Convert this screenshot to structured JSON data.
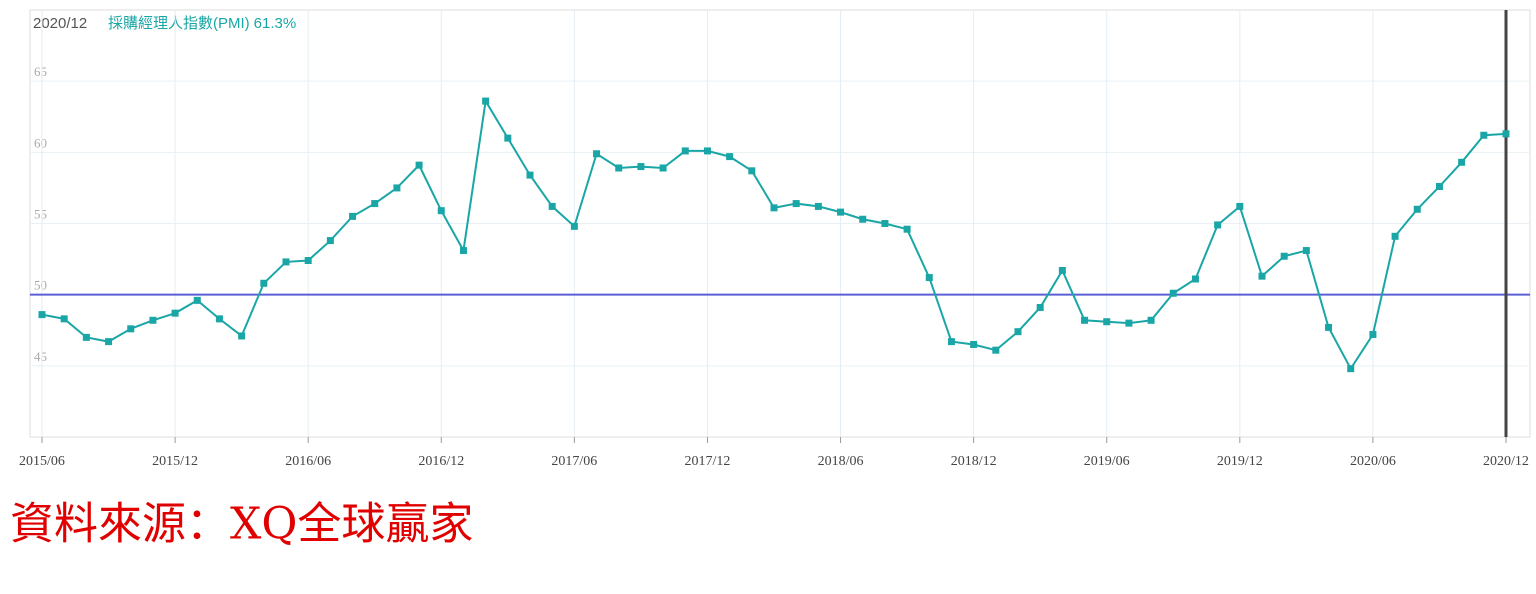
{
  "chart_data": {
    "type": "line",
    "categories": [
      "2015/06",
      null,
      null,
      null,
      null,
      null,
      "2015/12",
      null,
      null,
      null,
      null,
      null,
      "2016/06",
      null,
      null,
      null,
      null,
      null,
      "2016/12",
      null,
      null,
      null,
      null,
      null,
      "2017/06",
      null,
      null,
      null,
      null,
      null,
      "2017/12",
      null,
      null,
      null,
      null,
      null,
      "2018/06",
      null,
      null,
      null,
      null,
      null,
      "2018/12",
      null,
      null,
      null,
      null,
      null,
      "2019/06",
      null,
      null,
      null,
      null,
      null,
      "2019/12",
      null,
      null,
      null,
      null,
      null,
      "2020/06",
      null,
      null,
      null,
      null,
      null,
      "2020/12"
    ],
    "series": [
      {
        "name": "採購經理人指數(PMI)",
        "color": "#1aa6a6",
        "values": [
          48.6,
          48.3,
          47.0,
          46.7,
          47.6,
          48.2,
          48.7,
          49.6,
          48.3,
          47.1,
          50.8,
          52.3,
          52.4,
          53.8,
          55.5,
          56.4,
          57.5,
          59.1,
          55.9,
          53.1,
          63.6,
          61.0,
          58.4,
          56.2,
          54.8,
          59.9,
          58.9,
          59.0,
          58.9,
          60.1,
          60.1,
          59.7,
          58.7,
          56.1,
          56.4,
          56.2,
          55.8,
          55.3,
          55.0,
          54.6,
          51.2,
          46.7,
          46.5,
          46.1,
          47.4,
          49.1,
          51.7,
          48.2,
          48.1,
          48.0,
          48.2,
          50.1,
          51.1,
          54.9,
          56.2,
          51.3,
          52.7,
          53.1,
          47.7,
          44.8,
          47.2,
          54.1,
          56.0,
          57.6,
          59.3,
          61.2,
          61.3
        ],
        "latest_label": "61.3%"
      }
    ],
    "ylim": [
      40,
      70
    ],
    "yticks": [
      45,
      50,
      55,
      60,
      65
    ],
    "grid": true,
    "reference_line": {
      "value": 50,
      "color": "#5b5fd6"
    },
    "source": "資料來源：XQ全球贏家"
  }
}
